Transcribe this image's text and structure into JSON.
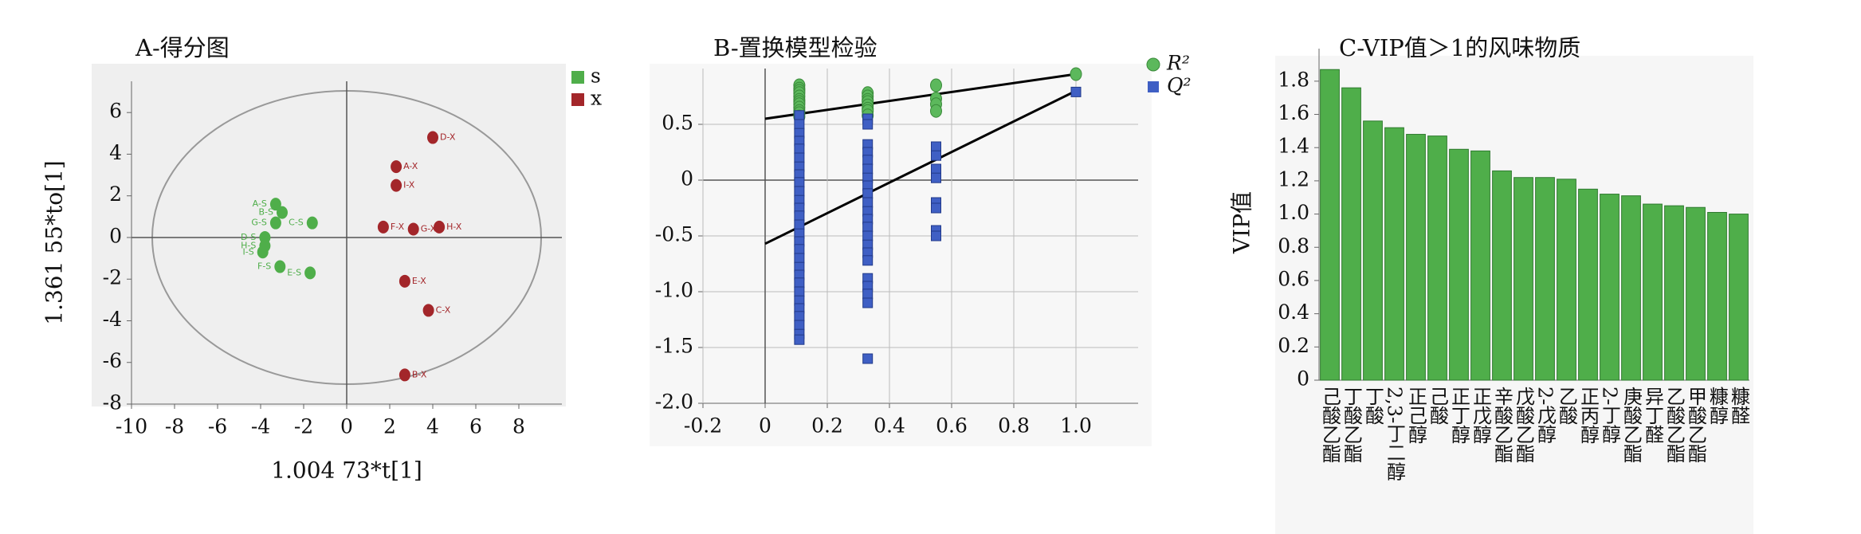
{
  "chart_data": [
    {
      "type": "scatter",
      "title": "A-得分图",
      "x_label": "1.004 73*t[1]",
      "y_label": "1.361 55*to[1]",
      "xlim": [
        -10,
        10
      ],
      "xticks": [
        -10,
        -8,
        -6,
        -4,
        -2,
        0,
        2,
        4,
        6,
        8
      ],
      "ylim": [
        -8,
        7.5
      ],
      "yticks": [
        -8,
        -6,
        -4,
        -2,
        0,
        2,
        4,
        6
      ],
      "grid": false,
      "legend": "top-right",
      "marker": "circle",
      "series": [
        {
          "name": "s",
          "color": "#4fae4a",
          "labels": [
            "A-S",
            "B-S",
            "C-S",
            "G-S",
            "D-S",
            "H-S",
            "I-S",
            "F-S",
            "E-S"
          ],
          "x": [
            -3.3,
            -3.0,
            -1.6,
            -3.3,
            -3.8,
            -3.8,
            -3.9,
            -3.1,
            -1.7
          ],
          "values": [
            1.6,
            1.2,
            0.7,
            0.7,
            0.0,
            -0.4,
            -0.7,
            -1.4,
            -1.7
          ]
        },
        {
          "name": "x",
          "color": "#a3262a",
          "labels": [
            "D-X",
            "A-X",
            "I-X",
            "F-X",
            "G-X",
            "H-X",
            "E-X",
            "C-X",
            "B-X"
          ],
          "x": [
            4.0,
            2.3,
            2.3,
            1.7,
            3.1,
            4.3,
            2.7,
            3.8,
            2.7
          ],
          "values": [
            4.8,
            3.4,
            2.5,
            0.5,
            0.4,
            0.5,
            -2.1,
            -3.5,
            -6.6
          ]
        }
      ]
    },
    {
      "type": "scatter",
      "title": "B-置换模型检验",
      "xlim": [
        -0.2,
        1.2
      ],
      "xticks": [
        -0.2,
        0,
        0.2,
        0.4,
        0.6,
        0.8,
        {
          "value": 1,
          "label": "1.0"
        }
      ],
      "ylim": [
        -2,
        1
      ],
      "yticks": [
        {
          "value": -2,
          "label": "-2.0"
        },
        -1.5,
        {
          "value": -1,
          "label": "-1.0"
        },
        -0.5,
        0,
        0.5
      ],
      "grid": true,
      "legend": "top-right",
      "series": [
        {
          "name": "R²",
          "color": "#5cb85c",
          "marker": "circle",
          "x": [
            0.11,
            0.11,
            0.11,
            0.11,
            0.11,
            0.11,
            0.11,
            0.11,
            0.11,
            0.11,
            0.11,
            0.11,
            0.33,
            0.33,
            0.33,
            0.33,
            0.33,
            0.33,
            0.33,
            0.33,
            0.55,
            0.55,
            0.55,
            0.55,
            1.0
          ],
          "values": [
            0.85,
            0.82,
            0.8,
            0.78,
            0.75,
            0.72,
            0.7,
            0.68,
            0.65,
            0.62,
            0.6,
            0.57,
            0.78,
            0.75,
            0.72,
            0.7,
            0.67,
            0.64,
            0.62,
            0.58,
            0.85,
            0.73,
            0.68,
            0.62,
            0.95
          ],
          "trend": {
            "x": [
              0,
              1.0
            ],
            "values": [
              0.55,
              0.95
            ]
          }
        },
        {
          "name": "Q²",
          "color": "#3f5fc4",
          "marker": "square",
          "x": [
            0.11,
            0.11,
            0.11,
            0.11,
            0.11,
            0.11,
            0.11,
            0.11,
            0.11,
            0.11,
            0.11,
            0.11,
            0.11,
            0.11,
            0.11,
            0.11,
            0.11,
            0.11,
            0.11,
            0.11,
            0.11,
            0.11,
            0.11,
            0.11,
            0.11,
            0.11,
            0.11,
            0.11,
            0.33,
            0.33,
            0.33,
            0.33,
            0.33,
            0.33,
            0.33,
            0.33,
            0.33,
            0.33,
            0.33,
            0.33,
            0.33,
            0.33,
            0.33,
            0.33,
            0.33,
            0.33,
            0.33,
            0.33,
            0.33,
            0.33,
            0.55,
            0.55,
            0.55,
            0.55,
            0.55,
            0.55,
            0.55,
            0.55,
            1.0
          ],
          "values": [
            0.58,
            0.5,
            0.42,
            0.35,
            0.28,
            0.2,
            0.12,
            0.05,
            -0.02,
            -0.1,
            -0.18,
            -0.25,
            -0.32,
            -0.4,
            -0.48,
            -0.55,
            -0.62,
            -0.7,
            -0.78,
            -0.85,
            -0.92,
            -1.0,
            -1.08,
            -1.15,
            -1.22,
            -1.3,
            -1.38,
            -1.43,
            0.55,
            0.5,
            0.32,
            0.25,
            0.18,
            0.1,
            0.02,
            -0.05,
            -0.12,
            -0.2,
            -0.28,
            -0.35,
            -0.42,
            -0.5,
            -0.58,
            -0.65,
            -0.72,
            -0.88,
            -0.95,
            -1.02,
            -1.1,
            -1.6,
            0.3,
            0.22,
            0.1,
            0.02,
            -0.2,
            -0.25,
            -0.45,
            -0.5,
            0.79
          ],
          "trend": {
            "x": [
              0,
              1.0
            ],
            "values": [
              -0.57,
              0.8
            ]
          }
        }
      ]
    },
    {
      "type": "bar",
      "title": "C-VIP值＞1的风味物质",
      "y_label": "VIP值",
      "color": "#4fae4a",
      "categories": [
        "己酸乙酯",
        "丁酸乙酯",
        "丁酸",
        "2,3-丁二醇",
        "正己醇",
        "己酸",
        "正丁醇",
        "正戊醇",
        "辛酸乙酯",
        "戊酸乙酯",
        "2-戊醇",
        "乙酸",
        "正丙醇",
        "2-丁醇",
        "庚酸乙酯",
        "异丁醛",
        "乙酸乙酯",
        "甲酸乙酯",
        "糠醇",
        "糠醛"
      ],
      "values": [
        1.87,
        1.76,
        1.56,
        1.52,
        1.48,
        1.47,
        1.39,
        1.38,
        1.26,
        1.22,
        1.22,
        1.21,
        1.15,
        1.12,
        1.11,
        1.06,
        1.05,
        1.04,
        1.01,
        1.0
      ],
      "ylim": [
        0,
        1.9
      ],
      "yticks": [
        0,
        0.2,
        0.4,
        0.6,
        0.8,
        {
          "value": 1,
          "label": "1.0"
        },
        1.2,
        1.4,
        1.6,
        1.8
      ],
      "grid": false
    }
  ]
}
